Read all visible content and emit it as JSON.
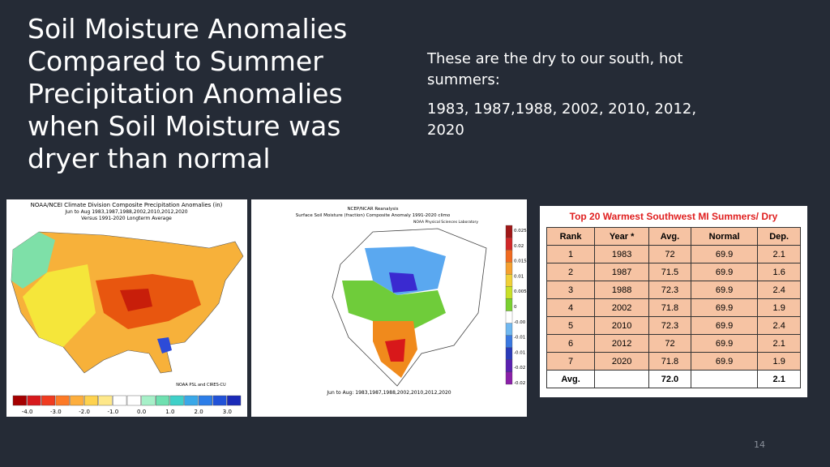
{
  "slide": {
    "title": [
      "Soil Moisture Anomalies",
      "Compared to Summer",
      "Precipitation Anomalies",
      "when Soil Moisture was",
      "dryer than normal"
    ],
    "body": [
      "These are the dry to our south, hot summers:",
      "1983, 1987,1988, 2002, 2010, 2012, 2020"
    ],
    "page_number": "14"
  },
  "figures": [
    {
      "title_lines": [
        "NOAA/NCEI Climate Division Composite Precipitation Anomalies (in)",
        "Jun to Aug  1983,1987,1988,2002,2010,2012,2020",
        "Versus 1991-2020 Longterm Average"
      ],
      "credit": "NOAA PSL and CIRES-CU",
      "colorbar_labels": [
        "-4.0",
        "-3.0",
        "-2.0",
        "-1.0",
        "0.0",
        "1.0",
        "2.0",
        "3.0",
        "4.0"
      ]
    },
    {
      "title_lines": [
        "NCEP/NCAR Reanalysis",
        "Surface Soil Moisture (fraction) Composite Anomaly 1991-2020 climo",
        "NOAA Physical Sciences Laboratory"
      ],
      "footer": "Jun to Aug: 1983,1987,1988,2002,2010,2012,2020",
      "colorbar_labels": [
        "0.025",
        "0.02",
        "0.015",
        "0.01",
        "0.005",
        "0",
        "-0.00",
        "-0.01",
        "-0.01",
        "-0.02",
        "-0.02"
      ]
    }
  ],
  "table": {
    "title": "Top 20 Warmest Southwest MI Summers/ Dry",
    "header": [
      "Rank",
      "Year *",
      "Avg.",
      "Normal",
      "Dep."
    ],
    "rows": [
      [
        "1",
        "1983",
        "72",
        "69.9",
        "2.1"
      ],
      [
        "2",
        "1987",
        "71.5",
        "69.9",
        "1.6"
      ],
      [
        "3",
        "1988",
        "72.3",
        "69.9",
        "2.4"
      ],
      [
        "4",
        "2002",
        "71.8",
        "69.9",
        "1.9"
      ],
      [
        "5",
        "2010",
        "72.3",
        "69.9",
        "2.4"
      ],
      [
        "6",
        "2012",
        "72",
        "69.9",
        "2.1"
      ],
      [
        "7",
        "2020",
        "71.8",
        "69.9",
        "1.9"
      ]
    ],
    "average": {
      "label": "Avg.",
      "avg": "72.0",
      "dep": "2.1"
    }
  }
}
